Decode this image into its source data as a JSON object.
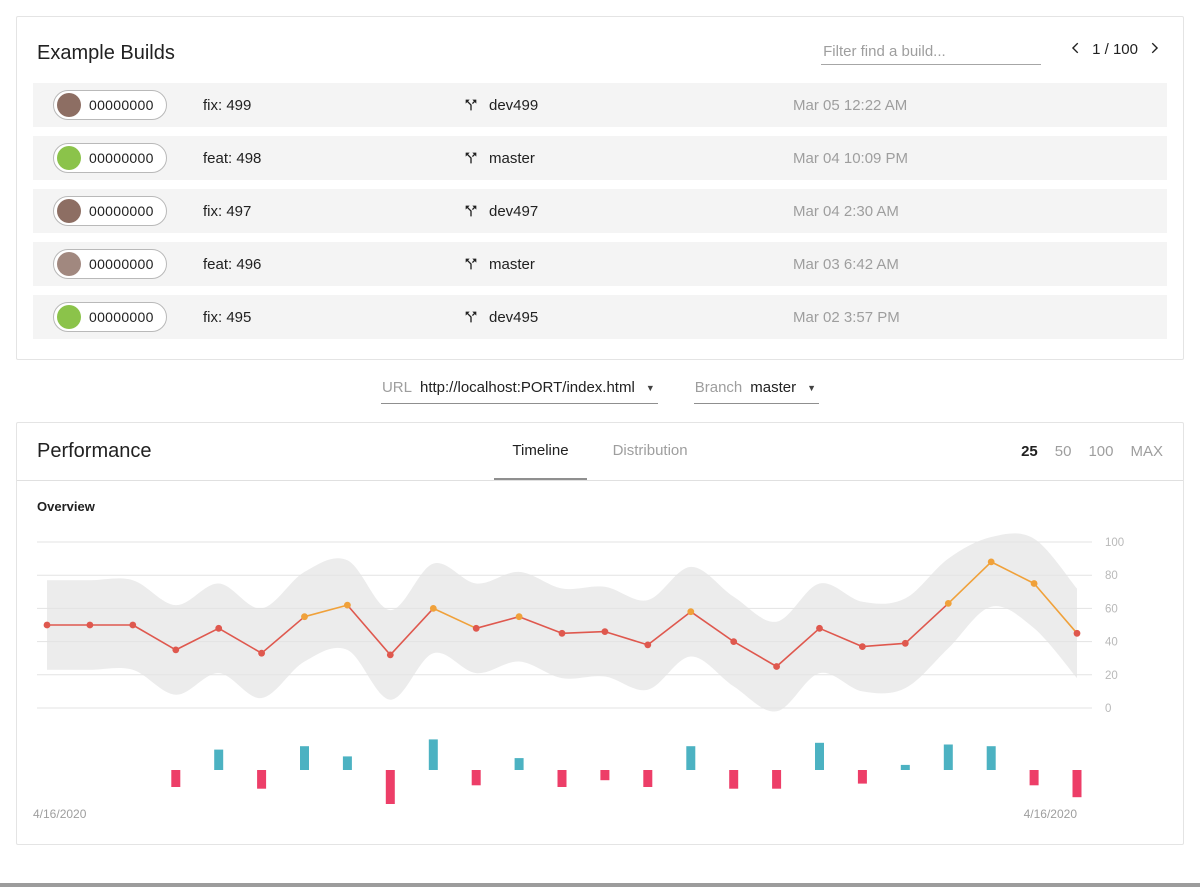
{
  "builds": {
    "title": "Example Builds",
    "filter_placeholder": "Filter find a build...",
    "pagination": {
      "prev_icon": "chevron-left",
      "label": "1 / 100",
      "next_icon": "chevron-right"
    },
    "rows": [
      {
        "avatar_style": "background:#8d6e63",
        "revision": "00000000",
        "message": "fix: 499",
        "branch": "dev499",
        "date": "Mar 05 12:22 AM"
      },
      {
        "avatar_style": "background:#8bc34a",
        "revision": "00000000",
        "message": "feat: 498",
        "branch": "master",
        "date": "Mar 04 10:09 PM"
      },
      {
        "avatar_style": "background:#8d6e63",
        "revision": "00000000",
        "message": "fix: 497",
        "branch": "dev497",
        "date": "Mar 04 2:30 AM"
      },
      {
        "avatar_style": "background:#a1887f",
        "revision": "00000000",
        "message": "feat: 496",
        "branch": "master",
        "date": "Mar 03 6:42 AM"
      },
      {
        "avatar_style": "background:#8bc34a",
        "revision": "00000000",
        "message": "fix: 495",
        "branch": "dev495",
        "date": "Mar 02 3:57 PM"
      }
    ]
  },
  "selectors": {
    "url_label": "URL",
    "url_value": "http://localhost:PORT/index.html",
    "branch_label": "Branch",
    "branch_value": "master"
  },
  "performance": {
    "title": "Performance",
    "tabs": [
      {
        "label": "Timeline",
        "active": true
      },
      {
        "label": "Distribution",
        "active": false
      }
    ],
    "ranges": [
      {
        "label": "25",
        "active": true
      },
      {
        "label": "50",
        "active": false
      },
      {
        "label": "100",
        "active": false
      },
      {
        "label": "MAX",
        "active": false
      }
    ],
    "section_label": "Overview"
  },
  "chart_data": {
    "type": "line",
    "title": "Overview",
    "x_labels": [
      "4/16/2020",
      "4/16/2020"
    ],
    "y_ticks": [
      0,
      20,
      40,
      60,
      80,
      100
    ],
    "ylim": [
      0,
      100
    ],
    "legend": "none",
    "grid": "horizontal-faint",
    "line": {
      "name": "overview-score",
      "values": [
        50,
        50,
        50,
        35,
        48,
        33,
        55,
        62,
        32,
        60,
        48,
        55,
        45,
        46,
        38,
        58,
        40,
        25,
        48,
        37,
        39,
        63,
        88,
        75,
        45
      ]
    },
    "band": {
      "name": "score-range-band",
      "upper": [
        77,
        77,
        77,
        62,
        75,
        60,
        82,
        89,
        59,
        87,
        75,
        82,
        72,
        73,
        65,
        85,
        67,
        52,
        75,
        64,
        66,
        90,
        103,
        102,
        72
      ],
      "lower": [
        23,
        23,
        23,
        8,
        21,
        6,
        28,
        35,
        5,
        33,
        21,
        28,
        18,
        19,
        11,
        31,
        13,
        -2,
        21,
        10,
        12,
        36,
        61,
        48,
        18
      ]
    },
    "bars": {
      "name": "delta",
      "values": [
        0,
        0,
        0,
        -10,
        12,
        -11,
        14,
        8,
        -20,
        18,
        -9,
        7,
        -10,
        -6,
        -10,
        14,
        -11,
        -11,
        16,
        -8,
        3,
        15,
        14,
        -9,
        -16
      ]
    },
    "colors": {
      "line_low": "#df584e",
      "line_high": "#f0a13a",
      "high_threshold": 54,
      "band": "#ececec",
      "bar_positive": "#4cb2c2",
      "bar_negative": "#ed3e68",
      "tick_label": "#b9b9b9",
      "date_label": "#9e9e9e",
      "gridline": "#e3e3e3"
    }
  }
}
